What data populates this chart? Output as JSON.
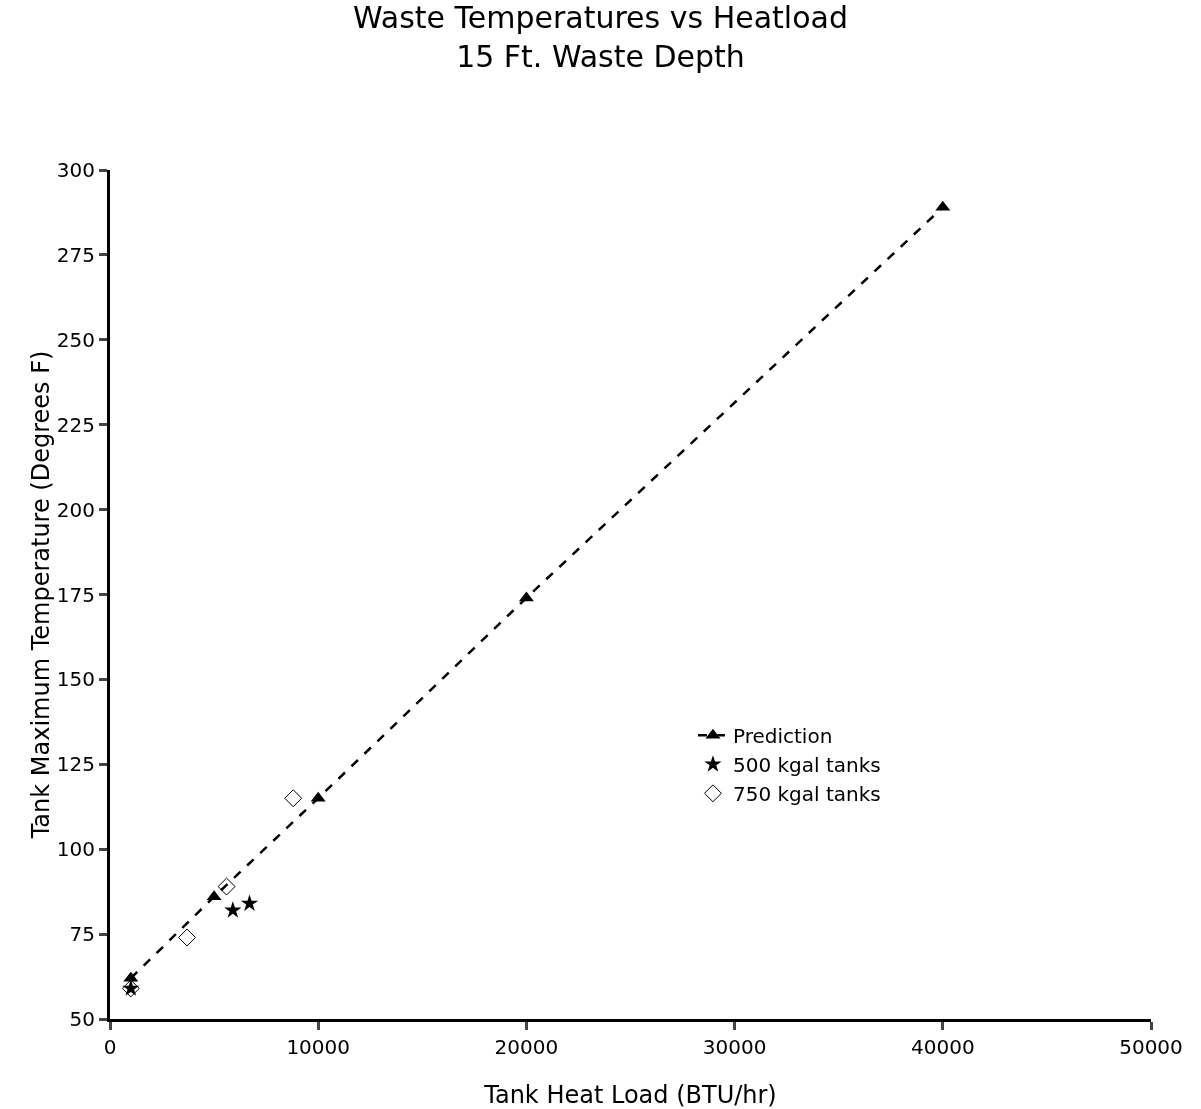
{
  "chart_data": {
    "type": "scatter",
    "title": "Waste Temperatures vs Heatload\n15 Ft. Waste Depth",
    "xlabel": "Tank Heat Load (BTU/hr)",
    "ylabel": "Tank Maximum Temperature (Degrees F)",
    "series": [
      {
        "name": "Prediction",
        "type": "line",
        "line_style": "dashed",
        "marker": "triangle",
        "color": "#000000",
        "x": [
          1000,
          5000,
          10000,
          20000,
          40000
        ],
        "values": [
          62,
          86,
          115,
          174,
          289
        ]
      },
      {
        "name": "500 kgal tanks",
        "type": "scatter",
        "marker": "star",
        "color": "#000000",
        "x": [
          1000,
          5900,
          6700
        ],
        "values": [
          59,
          82,
          84
        ]
      },
      {
        "name": "750 kgal tanks",
        "type": "scatter",
        "marker": "diamond",
        "color": "#000000",
        "x": [
          1000,
          3700,
          5600,
          8800
        ],
        "values": [
          59,
          74,
          89,
          115
        ]
      }
    ],
    "xlim": [
      0,
      50000
    ],
    "xticks": [
      0,
      10000,
      20000,
      30000,
      40000,
      50000
    ],
    "ylim": [
      50,
      300
    ],
    "yticks": [
      50,
      75,
      100,
      125,
      150,
      175,
      200,
      225,
      250,
      275,
      300
    ],
    "grid": false,
    "legend": "right"
  }
}
